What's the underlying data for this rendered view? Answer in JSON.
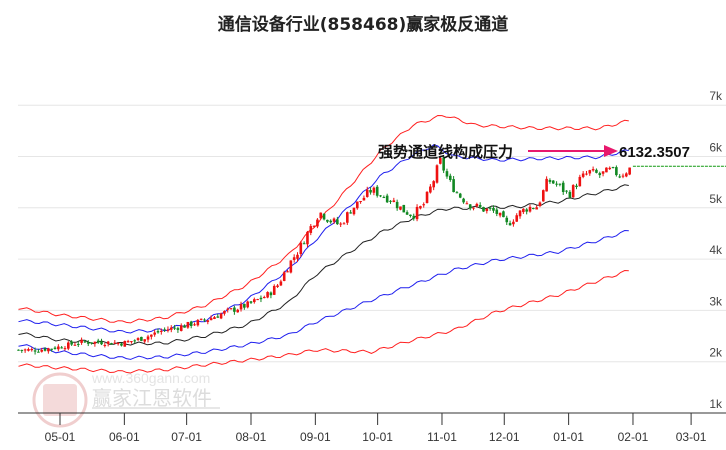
{
  "chart_data": {
    "type": "line",
    "title": "通信设备行业(858468)赢家极反通道",
    "xlabel": "",
    "ylabel": "",
    "x_unit": "days since 05-01",
    "x_ticks": [
      {
        "day": 0,
        "label": "05-01"
      },
      {
        "day": 31,
        "label": "06-01"
      },
      {
        "day": 61,
        "label": "07-01"
      },
      {
        "day": 92,
        "label": "08-01"
      },
      {
        "day": 123,
        "label": "09-01"
      },
      {
        "day": 153,
        "label": "10-01"
      },
      {
        "day": 184,
        "label": "11-01"
      },
      {
        "day": 214,
        "label": "12-01"
      },
      {
        "day": 245,
        "label": "01-01"
      },
      {
        "day": 276,
        "label": "02-01"
      },
      {
        "day": 304,
        "label": "03-01"
      }
    ],
    "y_ticks": [
      {
        "value": 1,
        "label": "1k"
      },
      {
        "value": 2,
        "label": "2k"
      },
      {
        "value": 3,
        "label": "3k"
      },
      {
        "value": 4,
        "label": "4k"
      },
      {
        "value": 5,
        "label": "5k"
      },
      {
        "value": 6,
        "label": "6k"
      },
      {
        "value": 7,
        "label": "7k"
      }
    ],
    "ylim": [
      1,
      7.2
    ],
    "grid": true,
    "candles_close": {
      "name": "K线",
      "x": [
        -20,
        -10,
        0,
        10,
        20,
        30,
        40,
        50,
        60,
        70,
        80,
        90,
        100,
        105,
        110,
        115,
        120,
        125,
        130,
        135,
        140,
        145,
        150,
        155,
        160,
        165,
        170,
        175,
        180,
        183,
        187,
        192,
        198,
        205,
        210,
        215,
        220,
        225,
        230,
        235,
        240,
        245,
        250,
        255,
        260,
        265,
        270,
        275
      ],
      "values": [
        2.23,
        2.23,
        2.29,
        2.38,
        2.38,
        2.36,
        2.46,
        2.62,
        2.7,
        2.81,
        2.97,
        3.1,
        3.3,
        3.5,
        3.88,
        4.18,
        4.57,
        4.92,
        4.76,
        4.66,
        4.96,
        5.15,
        5.35,
        5.25,
        5.15,
        4.96,
        4.86,
        5.05,
        5.54,
        5.93,
        5.54,
        5.25,
        5.05,
        4.96,
        4.92,
        4.66,
        4.86,
        5.0,
        5.03,
        5.54,
        5.44,
        5.25,
        5.54,
        5.7,
        5.64,
        5.73,
        5.64,
        5.78
      ]
    },
    "series": [
      {
        "name": "red-upper",
        "color": "#ff2020",
        "x": [
          -20,
          0,
          30,
          50,
          70,
          90,
          110,
          123,
          140,
          155,
          170,
          185,
          200,
          230,
          260,
          275
        ],
        "values": [
          3.05,
          2.91,
          2.77,
          2.85,
          3.1,
          3.5,
          4.08,
          4.66,
          5.44,
          6.13,
          6.61,
          6.81,
          6.61,
          6.55,
          6.55,
          6.71
        ]
      },
      {
        "name": "blue-upper",
        "color": "#2020ee",
        "x": [
          -20,
          0,
          30,
          50,
          70,
          90,
          110,
          123,
          140,
          155,
          170,
          180,
          190,
          210,
          240,
          260,
          275
        ],
        "values": [
          2.81,
          2.72,
          2.58,
          2.62,
          2.81,
          3.2,
          3.79,
          4.37,
          5.05,
          5.64,
          6.03,
          6.22,
          6.0,
          5.93,
          5.97,
          5.99,
          6.13
        ]
      },
      {
        "name": "middle",
        "color": "#222222",
        "x": [
          -20,
          0,
          30,
          50,
          70,
          90,
          110,
          123,
          140,
          155,
          170,
          185,
          200,
          220,
          240,
          260,
          275
        ],
        "values": [
          2.56,
          2.42,
          2.35,
          2.36,
          2.5,
          2.72,
          3.15,
          3.69,
          4.15,
          4.53,
          4.8,
          4.98,
          5.0,
          5.02,
          5.12,
          5.3,
          5.45
        ]
      },
      {
        "name": "blue-lower",
        "color": "#2020ee",
        "x": [
          -20,
          0,
          30,
          50,
          70,
          90,
          110,
          123,
          150,
          170,
          190,
          210,
          240,
          260,
          275
        ],
        "values": [
          2.33,
          2.19,
          2.07,
          2.09,
          2.19,
          2.33,
          2.52,
          2.77,
          3.2,
          3.5,
          3.79,
          3.98,
          4.14,
          4.37,
          4.57
        ]
      },
      {
        "name": "red-lower",
        "color": "#ff2020",
        "x": [
          -20,
          0,
          30,
          50,
          70,
          90,
          110,
          123,
          150,
          170,
          190,
          210,
          240,
          260,
          275
        ],
        "values": [
          1.94,
          1.88,
          1.8,
          1.84,
          1.94,
          2.03,
          2.13,
          2.23,
          2.19,
          2.42,
          2.62,
          2.97,
          3.3,
          3.59,
          3.79
        ]
      }
    ],
    "last_close_line": 5.81,
    "annotation": {
      "text": "强势通道线构成压力",
      "value": "6132.3507"
    },
    "colors": {
      "up": "#ee1111",
      "down": "#118822",
      "arrow": "#e8186d",
      "dotted": "#119911"
    }
  },
  "watermark": {
    "brand": "赢家江恩软件",
    "url": "www.360gann.com",
    "seal": "江赢恩家"
  }
}
